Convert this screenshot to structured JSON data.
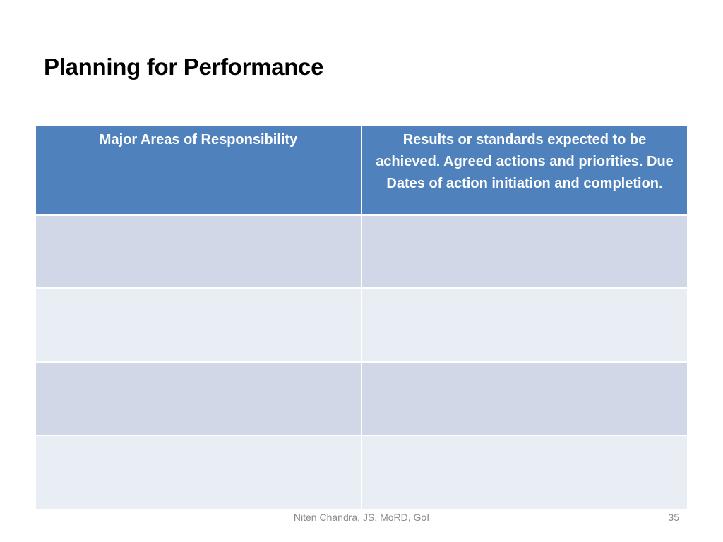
{
  "slide": {
    "title": "Planning for Performance"
  },
  "table": {
    "headers": [
      "Major Areas of Responsibility",
      "Results or standards expected to be achieved. Agreed actions and priorities. Due Dates of  action initiation and completion."
    ],
    "rows": [
      [
        "",
        ""
      ],
      [
        "",
        ""
      ],
      [
        "",
        ""
      ],
      [
        "",
        ""
      ]
    ]
  },
  "footer": {
    "text": "Niten Chandra, JS, MoRD, GoI",
    "page_number": "35"
  },
  "colors": {
    "header_fill": "#4f81bd",
    "row_fill_dark": "#d0d8e8",
    "row_fill_light": "#e9edf4",
    "footer_text": "#8b8b8b"
  }
}
